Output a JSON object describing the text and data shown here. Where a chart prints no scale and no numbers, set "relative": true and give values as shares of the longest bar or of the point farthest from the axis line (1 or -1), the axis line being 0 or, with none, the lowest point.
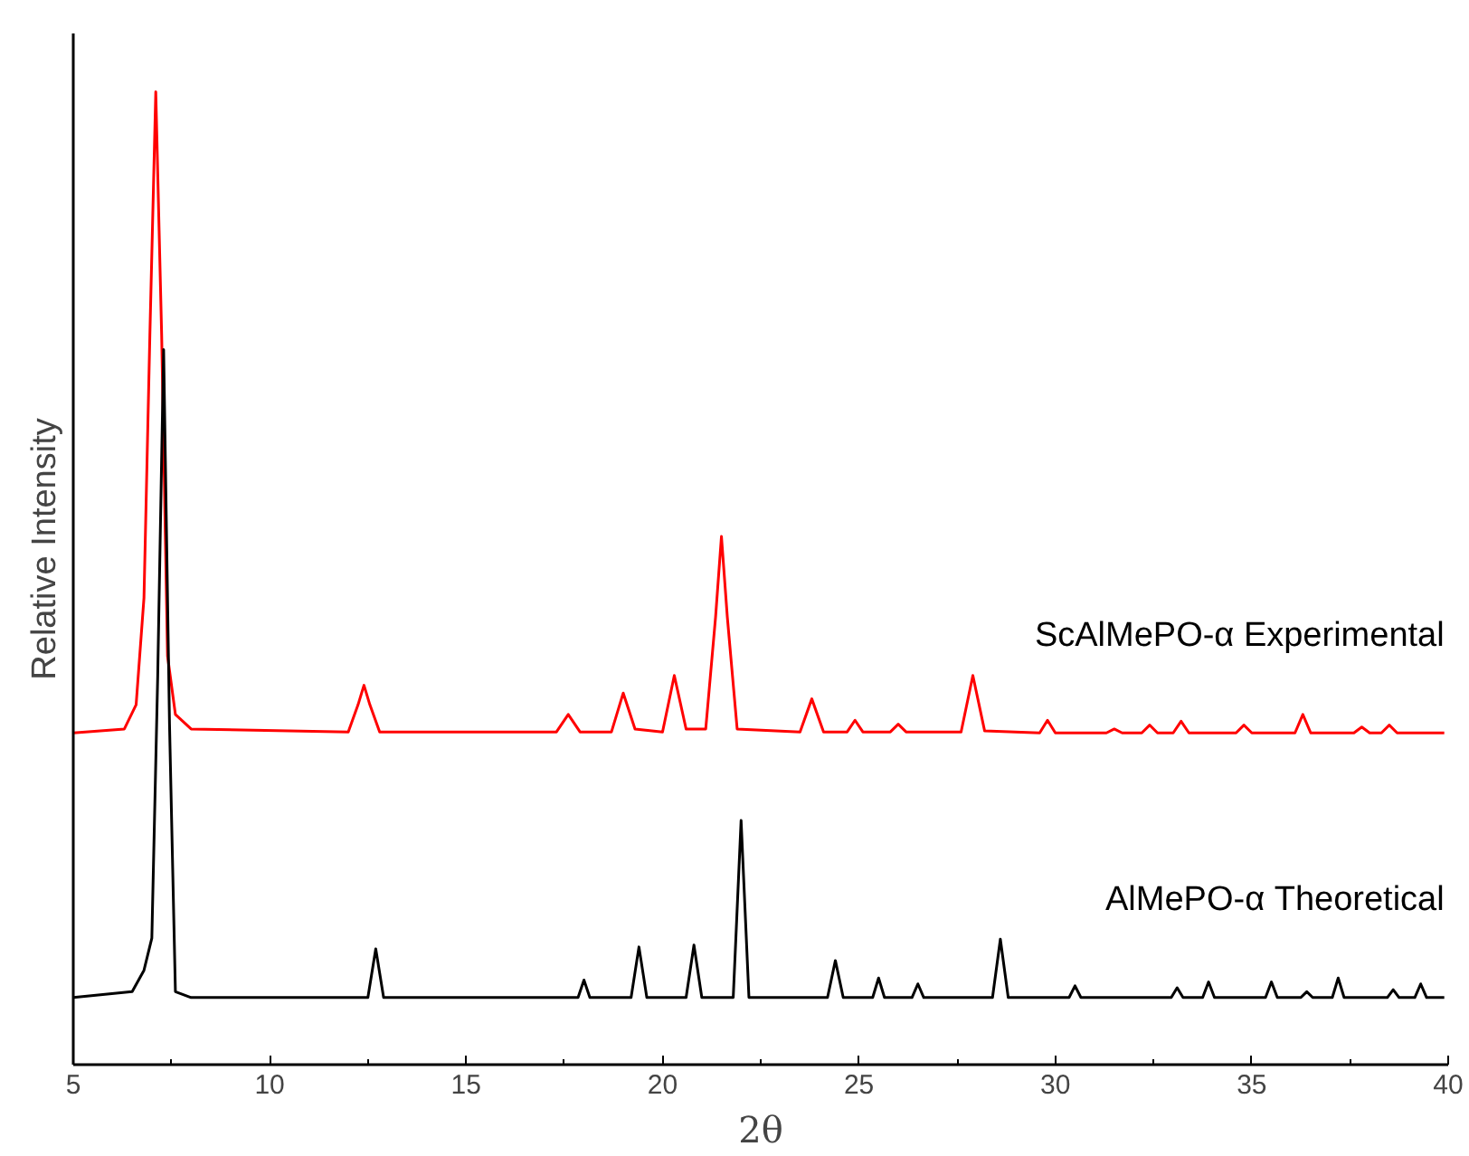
{
  "chart_data": {
    "type": "line",
    "relative": true,
    "xlabel": "2θ",
    "ylabel": "Relative Intensity",
    "xlim": [
      5,
      40
    ],
    "xticks": [
      5,
      10,
      15,
      20,
      25,
      30,
      35,
      40
    ],
    "series": [
      {
        "name": "ScAlMePO-α Experimental",
        "color": "#ff0000",
        "x": [
          5,
          6.3,
          6.6,
          6.8,
          6.95,
          7.1,
          7.25,
          7.4,
          7.6,
          8.0,
          12.0,
          12.25,
          12.4,
          12.55,
          12.8,
          17.3,
          17.6,
          17.9,
          18.7,
          19.0,
          19.3,
          20.0,
          20.3,
          20.6,
          21.1,
          21.35,
          21.5,
          21.65,
          21.9,
          23.5,
          23.8,
          24.1,
          24.7,
          24.9,
          25.1,
          25.8,
          26.0,
          26.2,
          27.6,
          27.9,
          28.2,
          29.6,
          29.8,
          30.0,
          31.3,
          31.5,
          31.7,
          32.2,
          32.4,
          32.6,
          33.0,
          33.2,
          33.4,
          34.6,
          34.8,
          35.0,
          36.1,
          36.3,
          36.5,
          37.6,
          37.8,
          38.0,
          38.3,
          38.5,
          38.7,
          39.9
        ],
        "values": [
          0.341,
          0.345,
          0.37,
          0.48,
          0.75,
          1.0,
          0.75,
          0.42,
          0.36,
          0.345,
          0.342,
          0.37,
          0.39,
          0.37,
          0.342,
          0.342,
          0.36,
          0.342,
          0.342,
          0.382,
          0.345,
          0.342,
          0.4,
          0.345,
          0.345,
          0.46,
          0.543,
          0.46,
          0.345,
          0.342,
          0.376,
          0.342,
          0.342,
          0.354,
          0.342,
          0.342,
          0.35,
          0.342,
          0.342,
          0.4,
          0.343,
          0.341,
          0.354,
          0.341,
          0.341,
          0.345,
          0.341,
          0.341,
          0.349,
          0.341,
          0.341,
          0.353,
          0.341,
          0.341,
          0.349,
          0.341,
          0.341,
          0.36,
          0.341,
          0.341,
          0.347,
          0.341,
          0.341,
          0.349,
          0.341,
          0.341
        ]
      },
      {
        "name": "AlMePO-α Theoretical",
        "color": "#000000",
        "x": [
          5,
          6.5,
          6.8,
          7.0,
          7.15,
          7.3,
          7.45,
          7.6,
          8.0,
          12.5,
          12.7,
          12.9,
          17.85,
          18.0,
          18.15,
          19.2,
          19.4,
          19.6,
          20.6,
          20.8,
          21.0,
          21.8,
          22.0,
          22.2,
          24.2,
          24.4,
          24.6,
          25.35,
          25.5,
          25.65,
          26.35,
          26.5,
          26.65,
          28.4,
          28.6,
          28.8,
          30.35,
          30.5,
          30.65,
          32.95,
          33.1,
          33.25,
          33.75,
          33.9,
          34.05,
          35.35,
          35.5,
          35.65,
          36.25,
          36.4,
          36.55,
          37.05,
          37.2,
          37.35,
          38.45,
          38.6,
          38.75,
          39.15,
          39.3,
          39.45,
          39.9
        ],
        "values": [
          0.069,
          0.075,
          0.097,
          0.13,
          0.4,
          0.735,
          0.35,
          0.075,
          0.069,
          0.069,
          0.119,
          0.069,
          0.069,
          0.087,
          0.069,
          0.069,
          0.121,
          0.069,
          0.069,
          0.123,
          0.069,
          0.069,
          0.251,
          0.069,
          0.069,
          0.107,
          0.069,
          0.069,
          0.089,
          0.069,
          0.069,
          0.083,
          0.069,
          0.069,
          0.129,
          0.069,
          0.069,
          0.081,
          0.069,
          0.069,
          0.079,
          0.069,
          0.069,
          0.085,
          0.069,
          0.069,
          0.085,
          0.069,
          0.069,
          0.075,
          0.069,
          0.069,
          0.089,
          0.069,
          0.069,
          0.077,
          0.069,
          0.069,
          0.083,
          0.069,
          0.069
        ]
      }
    ]
  }
}
